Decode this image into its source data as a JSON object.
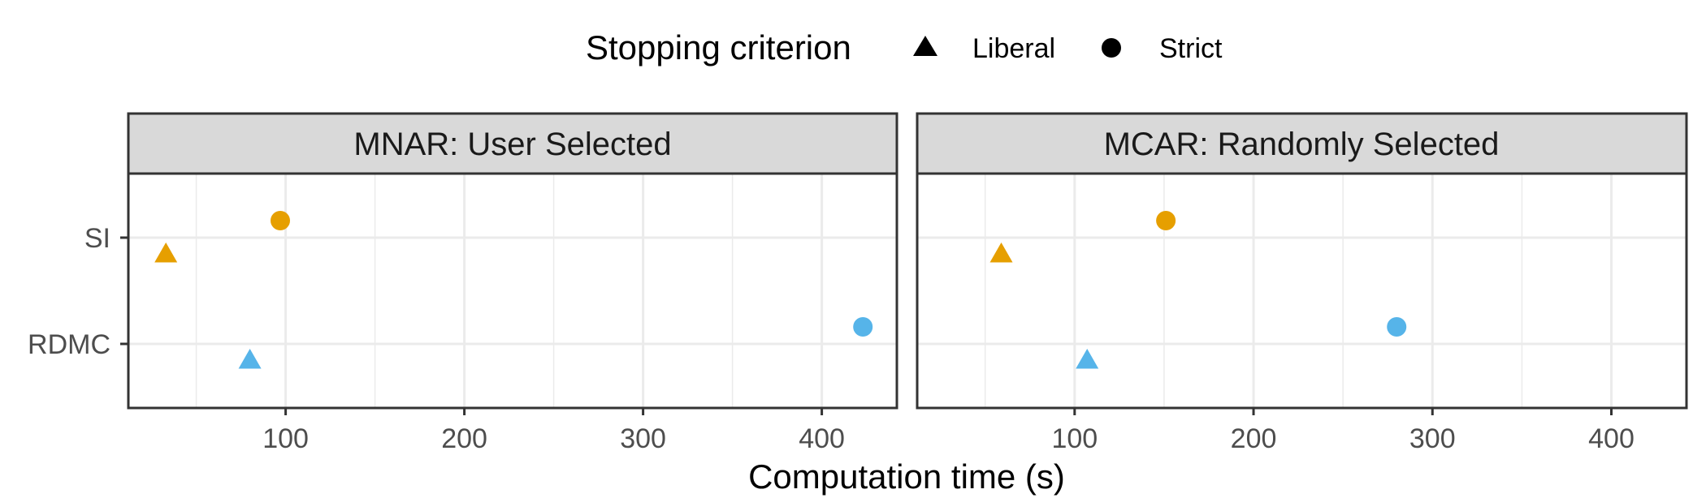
{
  "chart_data": {
    "type": "scatter",
    "xlabel": "Computation time (s)",
    "ylabel": "",
    "x_ticks": [
      100,
      200,
      300,
      400
    ],
    "y_categories": [
      "SI",
      "RDMC"
    ],
    "legend": {
      "title": "Stopping criterion",
      "position": "top",
      "entries": [
        {
          "label": "Liberal",
          "shape": "triangle"
        },
        {
          "label": "Strict",
          "shape": "circle"
        }
      ]
    },
    "method_colors": {
      "SI": "#E69F00",
      "RDMC": "#56B4E9"
    },
    "grid": true,
    "panels": [
      {
        "title": "MNAR: User Selected",
        "xlim": [
          12,
          442
        ],
        "points": [
          {
            "method": "SI",
            "criterion": "Strict",
            "x": 97
          },
          {
            "method": "SI",
            "criterion": "Liberal",
            "x": 33
          },
          {
            "method": "RDMC",
            "criterion": "Strict",
            "x": 423
          },
          {
            "method": "RDMC",
            "criterion": "Liberal",
            "x": 80
          }
        ]
      },
      {
        "title": "MCAR: Randomly Selected",
        "xlim": [
          12,
          442
        ],
        "points": [
          {
            "method": "SI",
            "criterion": "Strict",
            "x": 151
          },
          {
            "method": "SI",
            "criterion": "Liberal",
            "x": 59
          },
          {
            "method": "RDMC",
            "criterion": "Strict",
            "x": 280
          },
          {
            "method": "RDMC",
            "criterion": "Liberal",
            "x": 107
          }
        ]
      }
    ]
  }
}
